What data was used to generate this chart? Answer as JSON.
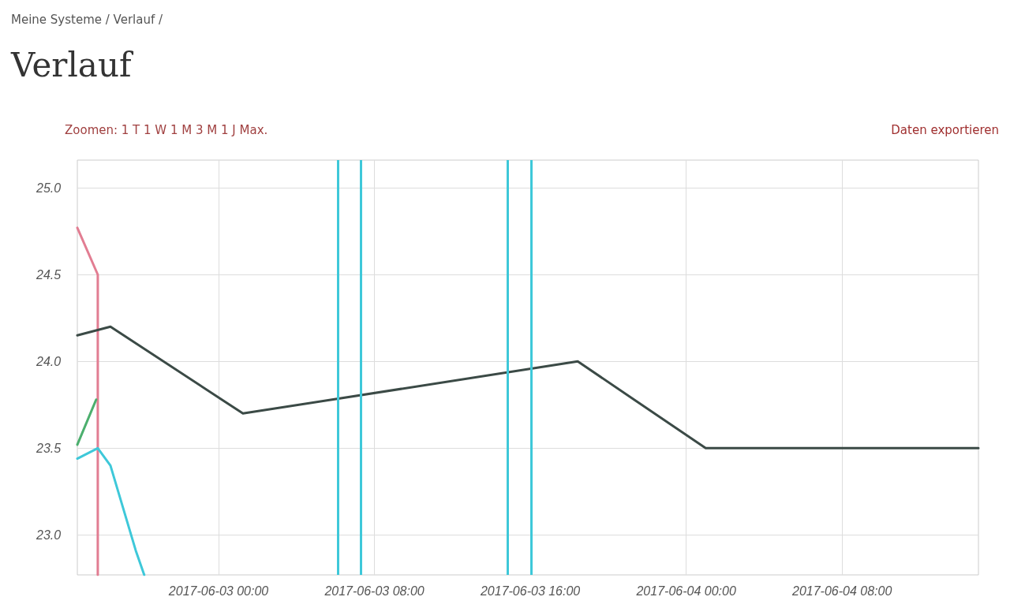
{
  "chart_data": {
    "type": "line",
    "title": "Verlauf",
    "annotations": [
      "Meine Systeme / Verlauf /",
      "Zoomen: 1 T 1 W 1 M 3 M 1 J Max.",
      "Daten exportieren"
    ],
    "xlim": [
      "2017-06-02T16:45",
      "2017-06-04T15:00"
    ],
    "xticks": [
      {
        "value": "2017-06-03T00:00",
        "label": "2017-06-03 00:00"
      },
      {
        "value": "2017-06-03T08:00",
        "label": "2017-06-03 08:00"
      },
      {
        "value": "2017-06-03T16:00",
        "label": "2017-06-03 16:00"
      },
      {
        "value": "2017-06-04T00:00",
        "label": "2017-06-04 00:00"
      },
      {
        "value": "2017-06-04T08:00",
        "label": "2017-06-04 08:00"
      }
    ],
    "ylim": [
      22.77,
      25.16
    ],
    "yticks": [
      {
        "value": 23,
        "label": "23.0"
      },
      {
        "value": 23.5,
        "label": "23.5"
      },
      {
        "value": 24,
        "label": "24.0"
      },
      {
        "value": 24.5,
        "label": "24.5"
      },
      {
        "value": 25,
        "label": "25.0"
      }
    ],
    "grid": true,
    "marker": "none",
    "line_style": "solid",
    "series": [
      {
        "color": "#e27d92",
        "x": [
          "2017-06-02T16:45",
          "2017-06-02T17:48",
          "2017-06-02T17:48"
        ],
        "values": [
          24.77,
          24.5,
          22.77
        ]
      },
      {
        "color": "#3b4a46",
        "x": [
          "2017-06-02T16:45",
          "2017-06-02T18:27",
          "2017-06-03T01:15",
          "2017-06-03T18:26",
          "2017-06-04T01:00",
          "2017-06-04T15:00"
        ],
        "values": [
          24.15,
          24.2,
          23.7,
          24.0,
          23.5,
          23.5
        ]
      },
      {
        "color": "#4caf6e",
        "x": [
          "2017-06-02T16:45",
          "2017-06-02T17:43"
        ],
        "values": [
          23.52,
          23.78
        ]
      },
      {
        "color": "#3ec8d9",
        "x": [
          "2017-06-02T16:45",
          "2017-06-02T17:48",
          "2017-06-02T18:27",
          "2017-06-02T19:45",
          "2017-06-02T20:11"
        ],
        "values": [
          23.44,
          23.5,
          23.4,
          22.91,
          22.77
        ]
      }
    ],
    "ref_lines": [
      {
        "axis": "x",
        "value": "2017-06-03T06:07",
        "color": "#3ec8d9"
      },
      {
        "axis": "x",
        "value": "2017-06-03T07:17",
        "color": "#3ec8d9"
      },
      {
        "axis": "x",
        "value": "2017-06-03T14:50",
        "color": "#3ec8d9"
      },
      {
        "axis": "x",
        "value": "2017-06-03T16:02",
        "color": "#3ec8d9"
      }
    ]
  }
}
